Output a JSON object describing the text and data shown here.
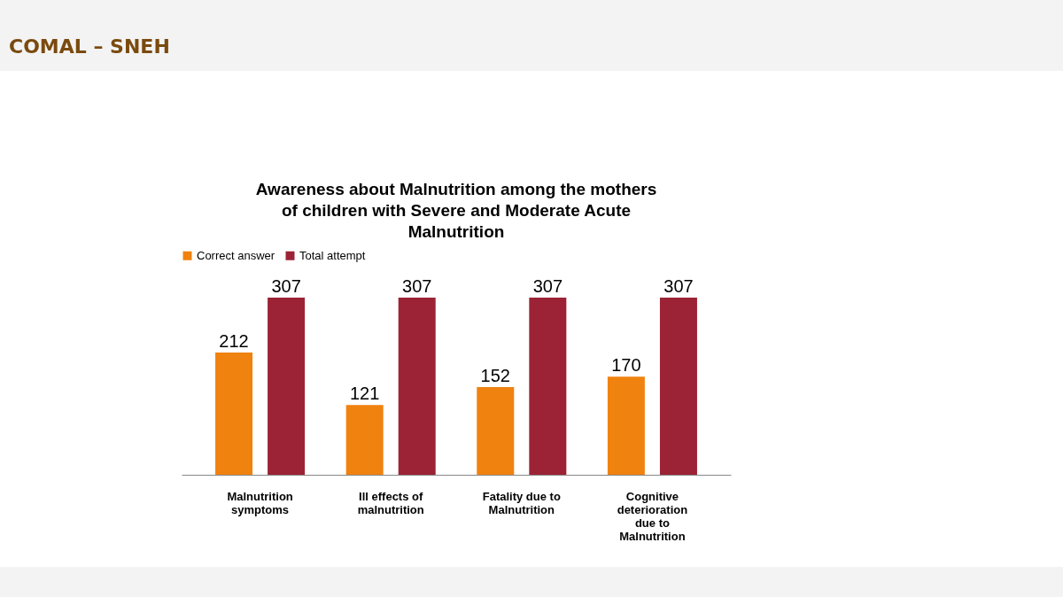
{
  "chart_data": {
    "type": "bar",
    "title": "Awareness about Malnutrition among the mothers of children with Severe and Moderate Acute Malnutrition",
    "annotations": [
      "COMAL – SNEH"
    ],
    "categories": [
      "Malnutrition symptoms",
      "Ill effects of malnutrition",
      "Fatality due to Malnutrition",
      "Cognitive deterioration due to Malnutrition"
    ],
    "series": [
      {
        "name": "Correct answer",
        "color": "#f0820f",
        "values": [
          212,
          121,
          152,
          170
        ]
      },
      {
        "name": "Total attempt",
        "color": "#9b2335",
        "values": [
          307,
          307,
          307,
          307
        ]
      }
    ],
    "data_labels": true,
    "legend": "top",
    "grid": false
  }
}
